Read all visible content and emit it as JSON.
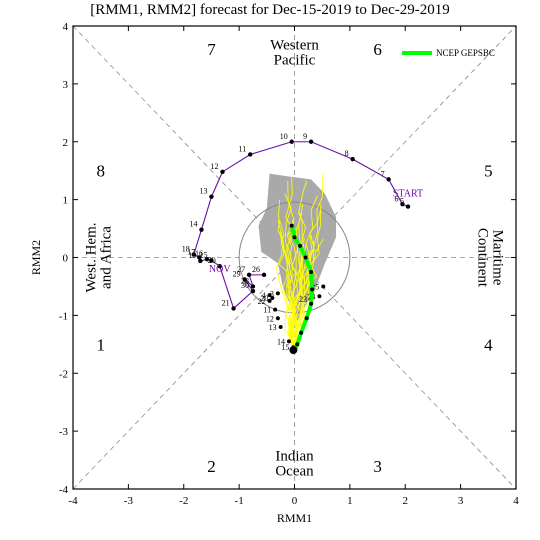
{
  "chart_data": {
    "type": "scatter",
    "title": "[RMM1, RMM2] forecast for Dec-15-2019 to Dec-29-2019",
    "xlabel": "RMM1",
    "ylabel": "RMM2",
    "xlim": [
      -4,
      4
    ],
    "ylim": [
      -4,
      4
    ],
    "xticks": [
      -4,
      -3,
      -2,
      -1,
      0,
      1,
      2,
      3,
      4
    ],
    "yticks": [
      -4,
      -3,
      -2,
      -1,
      0,
      1,
      2,
      3,
      4
    ],
    "unit_circle_radius": 1,
    "legend": {
      "position": "top-right",
      "entries": [
        {
          "name": "NCEP GEPSBC",
          "color": "#00ff00"
        }
      ]
    },
    "phase_labels": [
      {
        "text": "1",
        "x": -3.5,
        "y": -1.5
      },
      {
        "text": "2",
        "x": -1.5,
        "y": -3.6
      },
      {
        "text": "3",
        "x": 1.5,
        "y": -3.6
      },
      {
        "text": "4",
        "x": 3.5,
        "y": -1.5
      },
      {
        "text": "5",
        "x": 3.5,
        "y": 1.5
      },
      {
        "text": "6",
        "x": 1.5,
        "y": 3.6
      },
      {
        "text": "7",
        "x": -1.5,
        "y": 3.6
      },
      {
        "text": "8",
        "x": -3.5,
        "y": 1.5
      }
    ],
    "region_labels": [
      {
        "lines": [
          "Western",
          "Pacific"
        ],
        "x": 0,
        "y": 3.55,
        "rotate": 0
      },
      {
        "lines": [
          "Indian",
          "Ocean"
        ],
        "x": 0,
        "y": -3.55,
        "rotate": 0
      },
      {
        "lines": [
          "West. Hem.",
          "and Africa"
        ],
        "x": -3.55,
        "y": 0,
        "rotate": -90
      },
      {
        "lines": [
          "Maritime",
          "Continent"
        ],
        "x": 3.55,
        "y": 0,
        "rotate": 90
      }
    ],
    "annotations": [
      {
        "text": "START",
        "x": 2.05,
        "y": 1.05,
        "color": "#6a0dad"
      },
      {
        "text": "NOV",
        "x": -1.35,
        "y": -0.25,
        "color": "#6a0dad"
      }
    ],
    "observed_path": {
      "color": "#6a0dad",
      "points": [
        {
          "x": 2.05,
          "y": 0.88,
          "label": "5"
        },
        {
          "x": 1.95,
          "y": 0.92,
          "label": "6"
        },
        {
          "x": 1.7,
          "y": 1.35,
          "label": "7"
        },
        {
          "x": 1.05,
          "y": 1.7,
          "label": "8"
        },
        {
          "x": 0.3,
          "y": 2.0,
          "label": "9"
        },
        {
          "x": -0.05,
          "y": 2.0,
          "label": "10"
        },
        {
          "x": -0.8,
          "y": 1.78,
          "label": "11"
        },
        {
          "x": -1.3,
          "y": 1.48,
          "label": "12"
        },
        {
          "x": -1.5,
          "y": 1.05,
          "label": "13"
        },
        {
          "x": -1.68,
          "y": 0.48,
          "label": "14"
        },
        {
          "x": -1.82,
          "y": 0.05,
          "label": "18"
        },
        {
          "x": -1.72,
          "y": 0.0,
          "label": "17"
        },
        {
          "x": -1.7,
          "y": -0.06,
          "label": "19"
        },
        {
          "x": -1.58,
          "y": -0.03,
          "label": "16"
        },
        {
          "x": -1.5,
          "y": -0.05,
          "label": "15"
        },
        {
          "x": -1.35,
          "y": -0.15,
          "label": "20"
        },
        {
          "x": -1.1,
          "y": -0.88,
          "label": "21"
        },
        {
          "x": -0.75,
          "y": -0.58,
          "label": "30"
        },
        {
          "x": -0.9,
          "y": -0.38,
          "label": "29"
        },
        {
          "x": -0.75,
          "y": -0.5,
          "label": "28"
        },
        {
          "x": -0.82,
          "y": -0.3,
          "label": "27"
        },
        {
          "x": -0.55,
          "y": -0.3,
          "label": "26"
        }
      ]
    },
    "forecast_points": [
      {
        "x": -0.45,
        "y": -0.75,
        "label": "22"
      },
      {
        "x": -0.3,
        "y": -0.62,
        "label": "3"
      },
      {
        "x": -0.45,
        "y": -0.65,
        "label": "4"
      },
      {
        "x": -0.4,
        "y": -0.7,
        "label": "20"
      },
      {
        "x": -0.35,
        "y": -0.9,
        "label": "11"
      },
      {
        "x": -0.3,
        "y": -1.05,
        "label": "12"
      },
      {
        "x": -0.25,
        "y": -1.2,
        "label": "13"
      },
      {
        "x": -0.1,
        "y": -1.45,
        "label": "14"
      },
      {
        "x": -0.02,
        "y": -1.55,
        "label": "15"
      },
      {
        "x": 0.3,
        "y": -0.72,
        "label": "23"
      },
      {
        "x": 0.45,
        "y": -0.67,
        "label": "24"
      },
      {
        "x": 0.52,
        "y": -0.5,
        "label": "25"
      }
    ],
    "ensemble_mean": {
      "name": "NCEP GEPSBC",
      "color": "#00ff00",
      "points": [
        {
          "x": -0.05,
          "y": 0.55
        },
        {
          "x": 0.0,
          "y": 0.35
        },
        {
          "x": 0.1,
          "y": 0.2
        },
        {
          "x": 0.2,
          "y": 0.0
        },
        {
          "x": 0.3,
          "y": -0.25
        },
        {
          "x": 0.32,
          "y": -0.55
        },
        {
          "x": 0.3,
          "y": -0.8
        },
        {
          "x": 0.22,
          "y": -1.05
        },
        {
          "x": 0.12,
          "y": -1.3
        },
        {
          "x": 0.05,
          "y": -1.5
        },
        {
          "x": 0.0,
          "y": -1.6
        }
      ]
    },
    "spread_polygon": {
      "color": "#a9a9a9",
      "points": [
        {
          "x": -0.45,
          "y": 1.45
        },
        {
          "x": -0.1,
          "y": 1.4
        },
        {
          "x": 0.3,
          "y": 1.35
        },
        {
          "x": 0.55,
          "y": 1.1
        },
        {
          "x": 0.75,
          "y": 0.7
        },
        {
          "x": 0.75,
          "y": 0.35
        },
        {
          "x": 0.55,
          "y": -0.1
        },
        {
          "x": 0.35,
          "y": -0.6
        },
        {
          "x": 0.05,
          "y": -1.1
        },
        {
          "x": -0.2,
          "y": -0.55
        },
        {
          "x": -0.3,
          "y": -0.1
        },
        {
          "x": -0.6,
          "y": 0.1
        },
        {
          "x": -0.65,
          "y": 0.55
        },
        {
          "x": -0.5,
          "y": 0.85
        }
      ]
    },
    "forecast_start": {
      "x": -0.02,
      "y": -1.6
    }
  }
}
